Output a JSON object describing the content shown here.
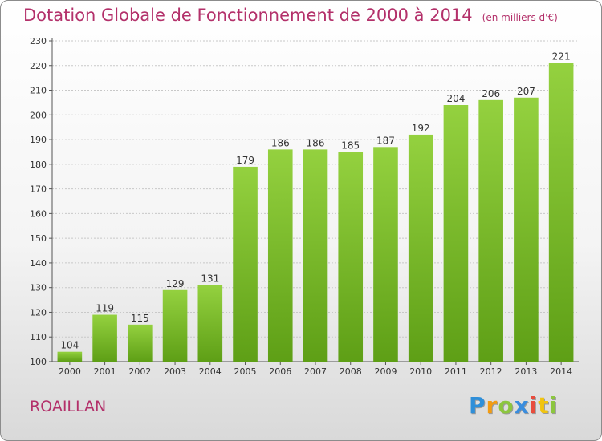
{
  "title": "Dotation Globale de Fonctionnement de 2000 à 2014",
  "subtitle": "(en milliers d'€)",
  "place": "ROAILLAN",
  "logo": {
    "p": "P",
    "r": "r",
    "o": "o",
    "x": "x",
    "i1": "i",
    "t": "t",
    "i2": "i"
  },
  "chart_data": {
    "type": "bar",
    "categories": [
      "2000",
      "2001",
      "2002",
      "2003",
      "2004",
      "2005",
      "2006",
      "2007",
      "2008",
      "2009",
      "2010",
      "2011",
      "2012",
      "2013",
      "2014"
    ],
    "values": [
      104,
      119,
      115,
      129,
      131,
      179,
      186,
      186,
      185,
      187,
      192,
      204,
      206,
      207,
      221
    ],
    "ylim": [
      100,
      230
    ],
    "yticks": [
      100,
      110,
      120,
      130,
      140,
      150,
      160,
      170,
      180,
      190,
      200,
      210,
      220,
      230
    ],
    "grid": true,
    "bar_color": "#7dbf2e",
    "title": "Dotation Globale de Fonctionnement de 2000 à 2014",
    "xlabel": "",
    "ylabel": ""
  }
}
